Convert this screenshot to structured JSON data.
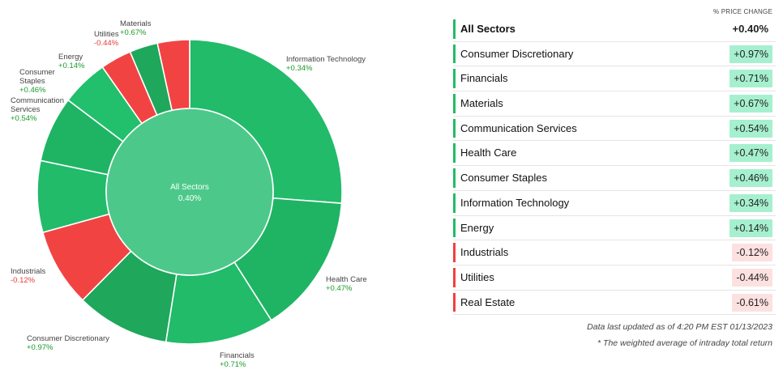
{
  "colors": {
    "up_strong": "#22bb66",
    "up_mid": "#27a862",
    "down": "#f04040",
    "center": "#4cc98a",
    "up_text": "#1a9a2c",
    "down_text": "#e83a3a",
    "up_badge_bg": "#a6f0cf",
    "down_badge_bg": "#fde0e0"
  },
  "chart_data": {
    "type": "pie",
    "center_label": "All Sectors",
    "center_value": "0.40%",
    "slices": [
      {
        "name": "Information Technology",
        "value": "+0.34%",
        "weight": 0.262,
        "color": "#21bb6a",
        "label_side": "right",
        "dir": "up"
      },
      {
        "name": "Health Care",
        "value": "+0.47%",
        "weight": 0.148,
        "color": "#1fb464",
        "label_side": "right",
        "dir": "up"
      },
      {
        "name": "Financials",
        "value": "+0.71%",
        "weight": 0.115,
        "color": "#21bb6a",
        "label_side": "center",
        "dir": "up"
      },
      {
        "name": "Consumer Discretionary",
        "value": "+0.97%",
        "weight": 0.099,
        "color": "#1fa75c",
        "label_side": "left",
        "dir": "up"
      },
      {
        "name": "Industrials",
        "value": "-0.12%",
        "weight": 0.083,
        "color": "#f24343",
        "label_side": "left",
        "dir": "down"
      },
      {
        "name": "Communication Services",
        "value": "+0.54%",
        "weight": 0.076,
        "color": "#21bb6a",
        "label_side": "left",
        "dir": "up"
      },
      {
        "name": "Consumer Staples",
        "value": "+0.46%",
        "weight": 0.07,
        "color": "#1fb464",
        "label_side": "left",
        "dir": "up"
      },
      {
        "name": "Energy",
        "value": "+0.14%",
        "weight": 0.05,
        "color": "#22bf6c",
        "label_side": "left",
        "dir": "up"
      },
      {
        "name": "Utilities",
        "value": "-0.44%",
        "weight": 0.033,
        "color": "#f24343",
        "label_side": "left",
        "dir": "down"
      },
      {
        "name": "Materials",
        "value": "+0.67%",
        "weight": 0.03,
        "color": "#1fa75c",
        "label_side": "left",
        "dir": "up"
      },
      {
        "name": "Real Estate",
        "value": "-0.61%",
        "weight": 0.034,
        "color": "#f24343",
        "label_side": "none",
        "dir": "down"
      }
    ],
    "labels": [
      {
        "lines": [
          "Information Technology"
        ],
        "value": "+0.34%",
        "dir": "up"
      },
      {
        "lines": [
          "Health Care"
        ],
        "value": "+0.47%",
        "dir": "up"
      },
      {
        "lines": [
          "Financials"
        ],
        "value": "+0.71%",
        "dir": "up"
      },
      {
        "lines": [
          "Consumer Discretionary"
        ],
        "value": "+0.97%",
        "dir": "up"
      },
      {
        "lines": [
          "Industrials"
        ],
        "value": "-0.12%",
        "dir": "down"
      },
      {
        "lines": [
          "Communication",
          "Services"
        ],
        "value": "+0.54%",
        "dir": "up"
      },
      {
        "lines": [
          "Consumer",
          "Staples"
        ],
        "value": "+0.46%",
        "dir": "up"
      },
      {
        "lines": [
          "Energy"
        ],
        "value": "+0.14%",
        "dir": "up"
      },
      {
        "lines": [
          "Utilities"
        ],
        "value": "-0.44%",
        "dir": "down"
      },
      {
        "lines": [
          "Materials"
        ],
        "value": "+0.67%",
        "dir": "up"
      }
    ]
  },
  "table": {
    "column_header": "% PRICE CHANGE",
    "total": {
      "name": "All Sectors",
      "value": "+0.40%"
    },
    "rows": [
      {
        "name": "Consumer Discretionary",
        "value": "+0.97%",
        "dir": "up"
      },
      {
        "name": "Financials",
        "value": "+0.71%",
        "dir": "up"
      },
      {
        "name": "Materials",
        "value": "+0.67%",
        "dir": "up"
      },
      {
        "name": "Communication Services",
        "value": "+0.54%",
        "dir": "up"
      },
      {
        "name": "Health Care",
        "value": "+0.47%",
        "dir": "up"
      },
      {
        "name": "Consumer Staples",
        "value": "+0.46%",
        "dir": "up"
      },
      {
        "name": "Information Technology",
        "value": "+0.34%",
        "dir": "up"
      },
      {
        "name": "Energy",
        "value": "+0.14%",
        "dir": "up"
      },
      {
        "name": "Industrials",
        "value": "-0.12%",
        "dir": "down"
      },
      {
        "name": "Utilities",
        "value": "-0.44%",
        "dir": "down"
      },
      {
        "name": "Real Estate",
        "value": "-0.61%",
        "dir": "down"
      }
    ]
  },
  "footer": {
    "updated": "Data last updated as of 4:20 PM EST 01/13/2023",
    "note": "* The weighted average of intraday total return"
  }
}
